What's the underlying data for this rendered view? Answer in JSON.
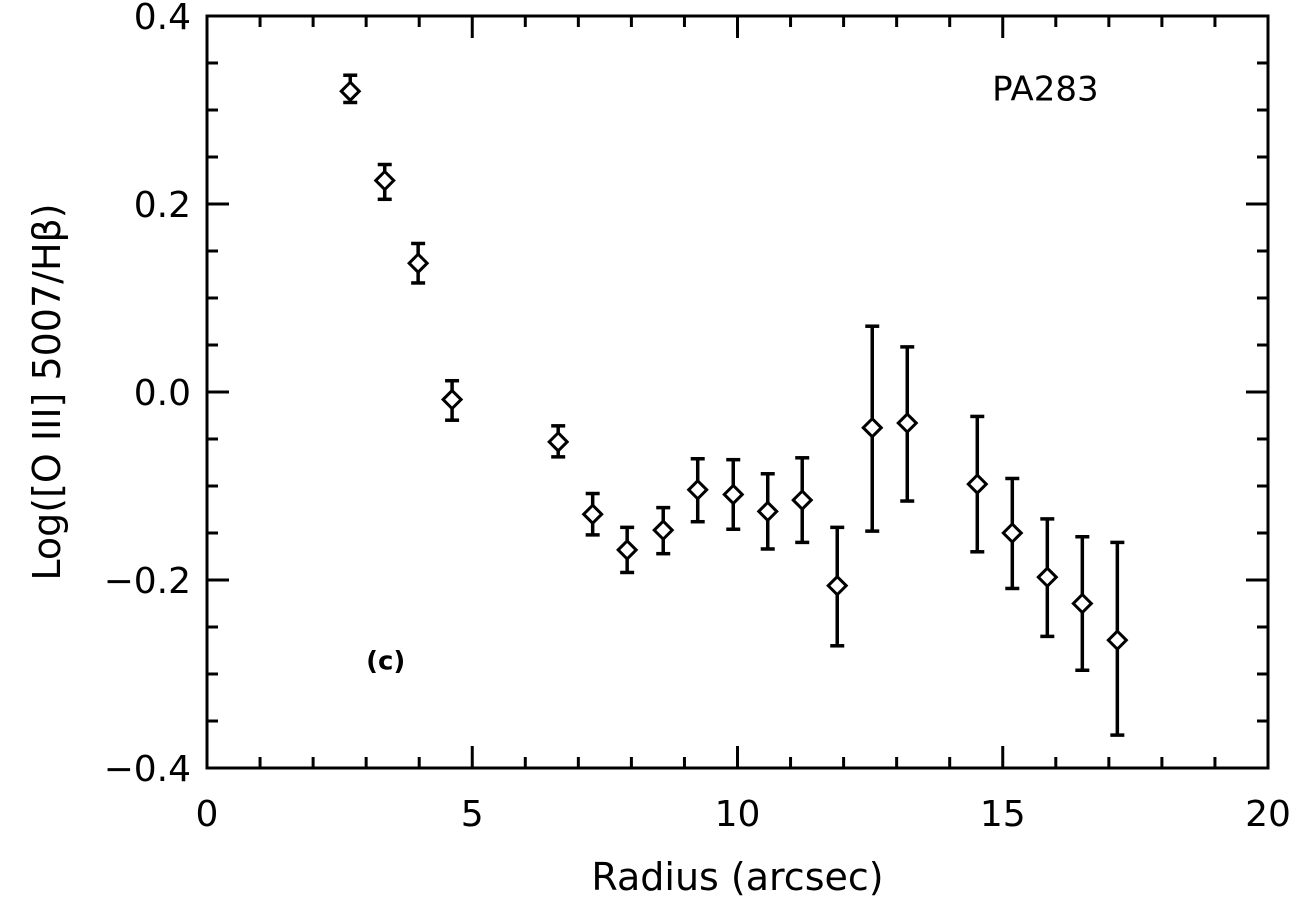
{
  "chart_data": {
    "type": "scatter",
    "xlabel": "Radius (arcsec)",
    "ylabel": "Log([O III] 5007/Hβ)",
    "xlim": [
      0,
      20
    ],
    "ylim": [
      -0.4,
      0.4
    ],
    "x_ticks": [
      0,
      5,
      10,
      15,
      20
    ],
    "x_tick_labels": [
      "0",
      "5",
      "10",
      "15",
      "20"
    ],
    "y_ticks": [
      -0.4,
      -0.2,
      0.0,
      0.2,
      0.4
    ],
    "y_tick_labels": [
      "−0.4",
      "−0.2",
      "0.0",
      "0.2",
      "0.4"
    ],
    "grid": false,
    "marker": "diamond",
    "annotations": [
      {
        "text": "PA283",
        "x": 14.8,
        "y": 0.31
      },
      {
        "text": "(c)",
        "x": 3.0,
        "y": -0.295
      }
    ],
    "series": [
      {
        "x": [
          2.7,
          3.35,
          3.98,
          4.62,
          6.62,
          7.27,
          7.92,
          8.6,
          9.25,
          9.92,
          10.57,
          11.22,
          11.88,
          12.54,
          13.2,
          14.52,
          15.18,
          15.84,
          16.5,
          17.16
        ],
        "y": [
          0.32,
          0.225,
          0.137,
          -0.008,
          -0.053,
          -0.13,
          -0.168,
          -0.147,
          -0.104,
          -0.109,
          -0.127,
          -0.115,
          -0.206,
          -0.038,
          -0.033,
          -0.098,
          -0.15,
          -0.197,
          -0.225,
          -0.264
        ],
        "y_low": [
          0.308,
          0.205,
          0.116,
          -0.03,
          -0.069,
          -0.152,
          -0.192,
          -0.172,
          -0.138,
          -0.146,
          -0.167,
          -0.16,
          -0.27,
          -0.148,
          -0.116,
          -0.17,
          -0.209,
          -0.26,
          -0.296,
          -0.365
        ],
        "y_high": [
          0.337,
          0.242,
          0.158,
          0.012,
          -0.036,
          -0.108,
          -0.144,
          -0.123,
          -0.071,
          -0.072,
          -0.087,
          -0.07,
          -0.144,
          0.07,
          0.048,
          -0.026,
          -0.092,
          -0.135,
          -0.154,
          -0.16
        ]
      }
    ]
  }
}
